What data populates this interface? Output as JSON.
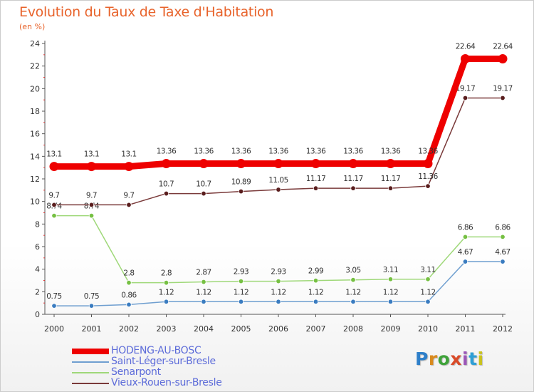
{
  "header": {
    "title": "Evolution du Taux de Taxe d'Habitation",
    "subtitle": "(en %)"
  },
  "logo": {
    "letters": [
      "P",
      "r",
      "o",
      "x",
      "i",
      "t",
      "i"
    ],
    "colors": [
      "#2e7fc9",
      "#d98a1e",
      "#3fa33a",
      "#d94a28",
      "#9b56b8",
      "#2e9fd6",
      "#c9c21c"
    ]
  },
  "chart_data": {
    "type": "line",
    "title": "Evolution du Taux de Taxe d'Habitation",
    "ylabel": "(en %)",
    "xlabel": "",
    "x": [
      "2000",
      "2001",
      "2002",
      "2003",
      "2004",
      "2005",
      "2006",
      "2007",
      "2008",
      "2009",
      "2010",
      "2011",
      "2012"
    ],
    "ylim": [
      0,
      24
    ],
    "yticks": [
      0,
      2,
      4,
      6,
      8,
      10,
      12,
      14,
      16,
      18,
      20,
      22,
      24
    ],
    "grid": false,
    "legend_position": "bottom-left",
    "series": [
      {
        "name": "HODENG-AU-BOSC",
        "color": "#ee0000",
        "emphasis": true,
        "values": [
          13.1,
          13.1,
          13.1,
          13.36,
          13.36,
          13.36,
          13.36,
          13.36,
          13.36,
          13.36,
          13.36,
          22.64,
          22.64
        ],
        "labels": [
          "13.1",
          "13.1",
          "13.1",
          "13.36",
          "13.36",
          "13.36",
          "13.36",
          "13.36",
          "13.36",
          "13.36",
          "13.36",
          "22.64",
          "22.64"
        ]
      },
      {
        "name": "Saint-Léger-sur-Bresle",
        "color": "#6f9fd0",
        "marker": "#3a7cc0",
        "values": [
          0.75,
          0.75,
          0.86,
          1.12,
          1.12,
          1.12,
          1.12,
          1.12,
          1.12,
          1.12,
          1.12,
          4.67,
          4.67
        ],
        "labels": [
          "0.75",
          "0.75",
          "0.86",
          "1.12",
          "1.12",
          "1.12",
          "1.12",
          "1.12",
          "1.12",
          "1.12",
          "1.12",
          "4.67",
          "4.67"
        ]
      },
      {
        "name": "Senarpont",
        "color": "#9fd879",
        "marker": "#76c043",
        "values": [
          8.74,
          8.74,
          2.8,
          2.8,
          2.87,
          2.93,
          2.93,
          2.99,
          3.05,
          3.11,
          3.11,
          6.86,
          6.86
        ],
        "labels": [
          "8.74",
          "8.74",
          "2.8",
          "2.8",
          "2.87",
          "2.93",
          "2.93",
          "2.99",
          "3.05",
          "3.11",
          "3.11",
          "6.86",
          "6.86"
        ]
      },
      {
        "name": "Vieux-Rouen-sur-Bresle",
        "color": "#7a3a3a",
        "marker": "#5a1e1e",
        "values": [
          9.7,
          9.7,
          9.7,
          10.7,
          10.7,
          10.89,
          11.05,
          11.17,
          11.17,
          11.17,
          11.36,
          19.17,
          19.17
        ],
        "labels": [
          "9.7",
          "9.7",
          "9.7",
          "10.7",
          "10.7",
          "10.89",
          "11.05",
          "11.17",
          "11.17",
          "11.17",
          "11.36",
          "19.17",
          "19.17"
        ]
      }
    ]
  }
}
